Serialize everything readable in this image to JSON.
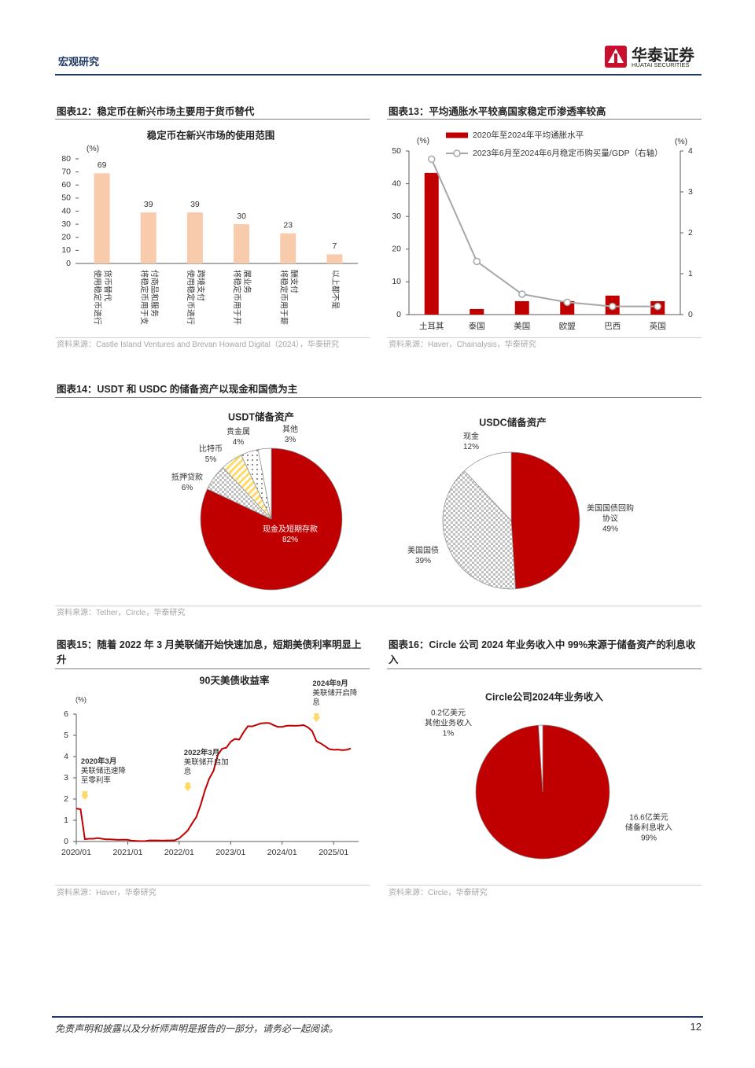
{
  "header": {
    "section": "宏观研究",
    "brand": "华泰证券",
    "brand_en": "HUATAI SECURITIES"
  },
  "figures": [
    {
      "caption": "图表12：稳定币在新兴市场主要用于货币替代",
      "source": "资料来源：Castle Island Ventures and Brevan Howard Digital（2024），华泰研究"
    },
    {
      "caption": "图表13：平均通胀水平较高国家稳定币渗透率较高",
      "source": "资料来源：Haver，Chainalysis，华泰研究"
    },
    {
      "caption": "图表14：USDT 和 USDC 的储备资产以现金和国债为主",
      "source": "资料来源：Tether，Circle，华泰研究"
    },
    {
      "caption": "图表15：随着 2022 年 3 月美联储开始快速加息，短期美债利率明显上升",
      "source": "资料来源：Haver，华泰研究"
    },
    {
      "caption": "图表16：Circle 公司 2024 年业务收入中 99%来源于储备资产的利息收入",
      "source": "资料来源：Circle，华泰研究"
    }
  ],
  "chart_data": [
    {
      "type": "bar",
      "title": "稳定币在新兴市场的使用范围",
      "y_label": "(%)",
      "categories": [
        "使用稳定币进行货币替代",
        "将稳定币用于支付商品和服务",
        "使用稳定币进行跨境支付",
        "将稳定币用于开展业务",
        "将稳定币用于薪酬支付",
        "以上都不是"
      ],
      "values": [
        69,
        39,
        39,
        30,
        23,
        7
      ],
      "color": "#f8cbad",
      "data_labels": true,
      "ylim": [
        0,
        80
      ],
      "yticks": [
        0,
        10,
        20,
        30,
        40,
        50,
        60,
        70,
        80
      ]
    },
    {
      "type": "bar",
      "y_label": "(%)",
      "y2_label": "(%)",
      "categories": [
        "土耳其",
        "泰国",
        "美国",
        "欧盟",
        "巴西",
        "英国"
      ],
      "series": [
        {
          "name": "2020年至2024年平均通胀水平",
          "type": "bar",
          "color": "#c00000",
          "values": [
            43.3,
            1.7,
            4.1,
            4.1,
            5.8,
            4.1
          ]
        },
        {
          "name": "2023年6月至2024年6月稳定币购买量/GDP（右轴）",
          "type": "line",
          "axis": "y2",
          "color": "#a6a6a6",
          "values": [
            3.8,
            1.3,
            0.5,
            0.3,
            0.2,
            0.2
          ]
        }
      ],
      "ylim": [
        0,
        50
      ],
      "yticks": [
        0,
        10,
        20,
        30,
        40,
        50
      ],
      "y2lim": [
        0,
        4
      ],
      "y2ticks": [
        0,
        1,
        2,
        3,
        4
      ]
    },
    {
      "type": "pie",
      "title": "USDT储备资产",
      "categories": [
        "现金及短期存款",
        "抵押贷款",
        "比特币",
        "贵金属",
        "其他"
      ],
      "values": [
        82,
        6,
        5,
        4,
        3
      ],
      "value_labels": [
        "82%",
        "6%",
        "5%",
        "4%",
        "3%"
      ],
      "colors": [
        "#c00000",
        "#bfbfbf",
        "#ffd966",
        "#404040",
        "#ffffff"
      ],
      "patterns": [
        "solid",
        "checker",
        "stripes",
        "dots",
        "solid"
      ]
    },
    {
      "type": "pie",
      "title": "USDC储备资产",
      "categories": [
        "美国国债回购协议",
        "美国国债",
        "现金"
      ],
      "values": [
        49,
        39,
        12
      ],
      "value_labels": [
        "49%",
        "39%",
        "12%"
      ],
      "colors": [
        "#c00000",
        "#bfbfbf",
        "#ffffff"
      ],
      "patterns": [
        "solid",
        "checker",
        "solid"
      ]
    },
    {
      "type": "line",
      "title": "90天美债收益率",
      "y_label": "(%)",
      "color": "#c00000",
      "x": [
        "2020/01",
        "2020/02",
        "2020/03",
        "2020/04",
        "2020/05",
        "2020/06",
        "2020/07",
        "2020/08",
        "2020/09",
        "2020/10",
        "2020/11",
        "2020/12",
        "2021/01",
        "2021/02",
        "2021/03",
        "2021/04",
        "2021/05",
        "2021/06",
        "2021/07",
        "2021/08",
        "2021/09",
        "2021/10",
        "2021/11",
        "2021/12",
        "2022/01",
        "2022/02",
        "2022/03",
        "2022/04",
        "2022/05",
        "2022/06",
        "2022/07",
        "2022/08",
        "2022/09",
        "2022/10",
        "2022/11",
        "2022/12",
        "2023/01",
        "2023/02",
        "2023/03",
        "2023/04",
        "2023/05",
        "2023/06",
        "2023/07",
        "2023/08",
        "2023/09",
        "2023/10",
        "2023/11",
        "2023/12",
        "2024/01",
        "2024/02",
        "2024/03",
        "2024/04",
        "2024/05",
        "2024/06",
        "2024/07",
        "2024/08",
        "2024/09",
        "2024/10",
        "2024/11",
        "2024/12",
        "2025/01",
        "2025/02",
        "2025/03",
        "2025/04",
        "2025/05"
      ],
      "values": [
        1.55,
        1.52,
        0.11,
        0.13,
        0.13,
        0.16,
        0.13,
        0.1,
        0.1,
        0.09,
        0.08,
        0.09,
        0.08,
        0.04,
        0.03,
        0.02,
        0.02,
        0.05,
        0.05,
        0.05,
        0.04,
        0.05,
        0.05,
        0.06,
        0.15,
        0.33,
        0.52,
        0.85,
        1.16,
        1.72,
        2.41,
        2.96,
        3.33,
        4.08,
        4.37,
        4.42,
        4.7,
        4.83,
        4.8,
        5.14,
        5.43,
        5.42,
        5.49,
        5.56,
        5.58,
        5.58,
        5.48,
        5.4,
        5.4,
        5.45,
        5.46,
        5.45,
        5.46,
        5.48,
        5.38,
        5.2,
        4.72,
        4.62,
        4.49,
        4.35,
        4.32,
        4.33,
        4.3,
        4.32,
        4.38
      ],
      "ylim": [
        0,
        6
      ],
      "yticks": [
        0,
        1,
        2,
        3,
        4,
        5,
        6
      ],
      "xticks": [
        "2020/01",
        "2021/01",
        "2022/01",
        "2023/01",
        "2024/01",
        "2025/01"
      ],
      "annotations": [
        {
          "x": "2020/03",
          "title": "2020年3月",
          "text": "美联储迅速降至零利率"
        },
        {
          "x": "2022/03",
          "title": "2022年3月",
          "text": "美联储开启加息"
        },
        {
          "x": "2024/09",
          "title": "2024年9月",
          "text": "美联储开启降息"
        }
      ]
    },
    {
      "type": "pie",
      "title": "Circle公司2024年业务收入",
      "categories": [
        "储备利息收入",
        "其他业务收入"
      ],
      "values": [
        99,
        1
      ],
      "value_labels": [
        "99%",
        "1%"
      ],
      "amount_labels": [
        "16.6亿美元",
        "0.2亿美元"
      ],
      "colors": [
        "#c00000",
        "#ffffff"
      ],
      "patterns": [
        "solid",
        "solid"
      ]
    }
  ],
  "footer": {
    "disclaimer": "免责声明和披露以及分析师声明是报告的一部分，请务必一起阅读。",
    "page": "12"
  }
}
